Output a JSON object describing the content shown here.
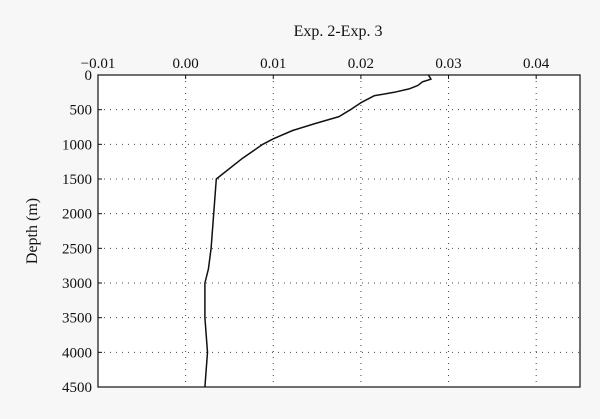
{
  "chart_data": {
    "type": "line",
    "orientation": "vertical-profile",
    "title": "",
    "xlabel": "Exp. 2-Exp. 3",
    "ylabel": "Depth (m)",
    "xlim": [
      -0.01,
      0.045
    ],
    "ylim": [
      0,
      4500
    ],
    "y_inverted": true,
    "x_axis_position": "top",
    "grid": true,
    "grid_style": "dotted",
    "x_ticks": [
      -0.01,
      0.0,
      0.01,
      0.02,
      0.03,
      0.04
    ],
    "x_tick_labels": [
      "−0.01",
      "0.00",
      "0.01",
      "0.02",
      "0.03",
      "0.04"
    ],
    "y_ticks": [
      0,
      500,
      1000,
      1500,
      2000,
      2500,
      3000,
      3500,
      4000,
      4500
    ],
    "y_tick_labels": [
      "0",
      "500",
      "1000",
      "1500",
      "2000",
      "2500",
      "3000",
      "3500",
      "4000",
      "4500"
    ],
    "series": [
      {
        "color": "#111111",
        "points": [
          {
            "x": 0.0277,
            "y": 0
          },
          {
            "x": 0.028,
            "y": 60
          },
          {
            "x": 0.027,
            "y": 100
          },
          {
            "x": 0.0265,
            "y": 150
          },
          {
            "x": 0.0255,
            "y": 200
          },
          {
            "x": 0.0238,
            "y": 250
          },
          {
            "x": 0.0215,
            "y": 300
          },
          {
            "x": 0.02,
            "y": 400
          },
          {
            "x": 0.0188,
            "y": 500
          },
          {
            "x": 0.0175,
            "y": 600
          },
          {
            "x": 0.0148,
            "y": 700
          },
          {
            "x": 0.0122,
            "y": 800
          },
          {
            "x": 0.01,
            "y": 920
          },
          {
            "x": 0.0088,
            "y": 1000
          },
          {
            "x": 0.0065,
            "y": 1200
          },
          {
            "x": 0.0035,
            "y": 1500
          },
          {
            "x": 0.0032,
            "y": 2000
          },
          {
            "x": 0.0029,
            "y": 2500
          },
          {
            "x": 0.0026,
            "y": 2800
          },
          {
            "x": 0.0022,
            "y": 3000
          },
          {
            "x": 0.0022,
            "y": 3500
          },
          {
            "x": 0.0025,
            "y": 4000
          },
          {
            "x": 0.0022,
            "y": 4500
          }
        ]
      }
    ]
  }
}
